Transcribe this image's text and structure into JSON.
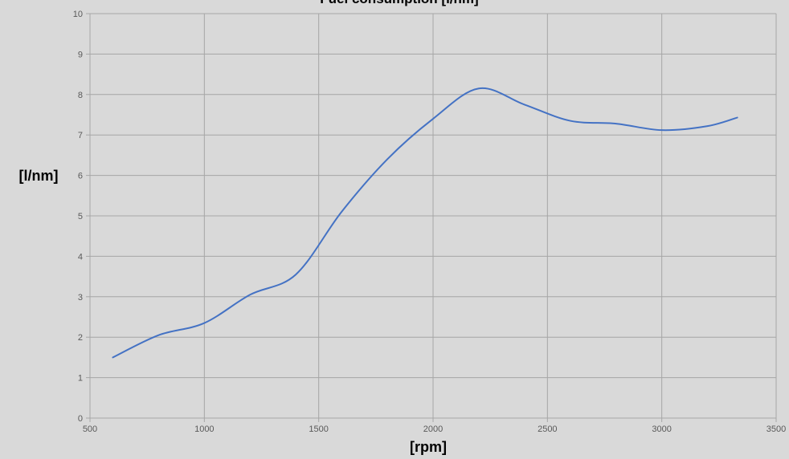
{
  "chart_data": {
    "type": "line",
    "title": "Fuel consumption [l/nm]",
    "xlabel": "[rpm]",
    "ylabel": "[l/nm]",
    "xlim": [
      500,
      3500
    ],
    "ylim": [
      0,
      10
    ],
    "x_ticks": [
      500,
      1000,
      1500,
      2000,
      2500,
      3000,
      3500
    ],
    "y_ticks": [
      0,
      1,
      2,
      3,
      4,
      5,
      6,
      7,
      8,
      9,
      10
    ],
    "grid": true,
    "legend": "none",
    "series": [
      {
        "color": "#4472c4",
        "smooth": true,
        "x": [
          600,
          800,
          1000,
          1200,
          1400,
          1600,
          1800,
          2000,
          2200,
          2400,
          2600,
          2800,
          3000,
          3200,
          3330
        ],
        "y": [
          1.5,
          2.05,
          2.35,
          3.05,
          3.55,
          5.1,
          6.4,
          7.4,
          8.15,
          7.75,
          7.35,
          7.28,
          7.12,
          7.22,
          7.43
        ]
      }
    ],
    "colors": {
      "background": "#d9d9d9",
      "grid": "#a6a6a6",
      "line": "#4472c4"
    }
  }
}
